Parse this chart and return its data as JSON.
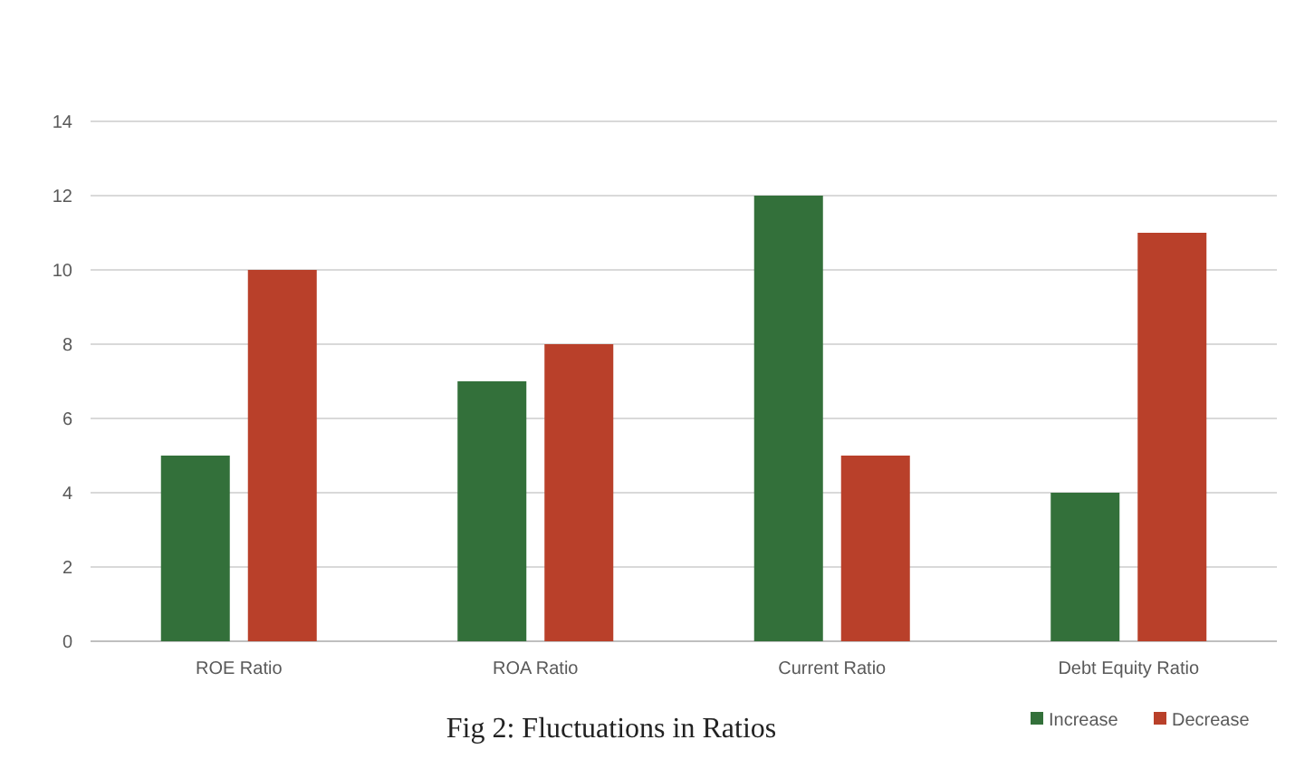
{
  "chart_data": {
    "type": "bar",
    "title": "Fig 2: Fluctuations in Ratios",
    "categories": [
      "ROE Ratio",
      "ROA Ratio",
      "Current Ratio",
      "Debt Equity Ratio"
    ],
    "series": [
      {
        "name": "Increase",
        "color": "#33703a",
        "values": [
          5,
          7,
          12,
          4
        ]
      },
      {
        "name": "Decrease",
        "color": "#b9402a",
        "values": [
          10,
          8,
          5,
          11
        ]
      }
    ],
    "ylim": [
      0,
      14
    ],
    "yticks": [
      0,
      2,
      4,
      6,
      8,
      10,
      12,
      14
    ],
    "grid": "y",
    "legend": "bottom right"
  }
}
